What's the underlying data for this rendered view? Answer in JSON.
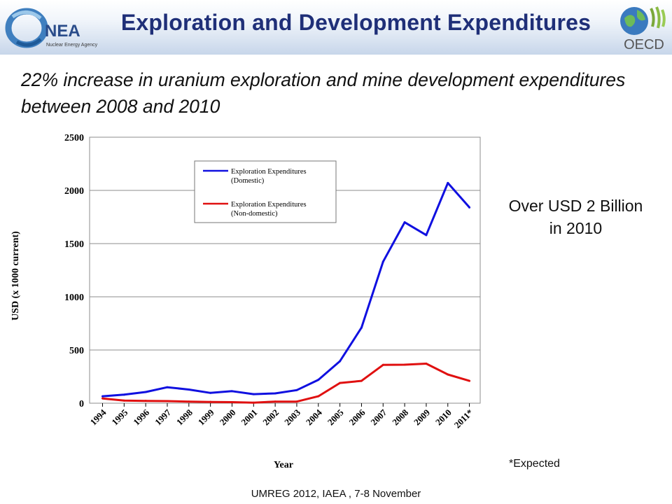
{
  "slide": {
    "title": "Exploration and Development Expenditures",
    "subtitle": "22% increase in uranium exploration and mine development expenditures between 2008 and 2010",
    "annotation_line1": "Over USD 2 Billion",
    "annotation_line2": "in 2010",
    "footnote": "*Expected",
    "footer": "UMREG 2012, IAEA , 7-8 November"
  },
  "logos": {
    "nea_text": "NEA",
    "nea_subtext": "Nuclear Energy Agency",
    "oecd_text": "OECD"
  },
  "colors": {
    "title": "#1f2f78",
    "domestic": "#1010e0",
    "non_domestic": "#e01010",
    "grid": "#8c8c8c"
  },
  "chart_data": {
    "type": "line",
    "xlabel": "Year",
    "ylabel": "USD (x 1000 current)",
    "ylim": [
      0,
      2500
    ],
    "yticks": [
      0,
      500,
      1000,
      1500,
      2000,
      2500
    ],
    "grid": true,
    "legend_position": "top-left",
    "categories": [
      "1994",
      "1995",
      "1996",
      "1997",
      "1998",
      "1999",
      "2000",
      "2001",
      "2002",
      "2003",
      "2004",
      "2005",
      "2006",
      "2007",
      "2008",
      "2009",
      "2010",
      "2011*"
    ],
    "series": [
      {
        "name": "Exploration Expenditures (Domestic)",
        "legend_line1": "Exploration Expenditures",
        "legend_line2": "(Domestic)",
        "color": "#1010e0",
        "values": [
          65,
          80,
          105,
          150,
          128,
          97,
          113,
          85,
          92,
          123,
          220,
          395,
          710,
          1330,
          1700,
          1580,
          2070,
          1840
        ]
      },
      {
        "name": "Exploration Expenditures (Non-domestic)",
        "legend_line1": "Exploration Expenditures",
        "legend_line2": "(Non-domestic)",
        "color": "#e01010",
        "values": [
          45,
          25,
          22,
          20,
          15,
          12,
          10,
          5,
          15,
          15,
          65,
          190,
          210,
          360,
          362,
          372,
          270,
          210
        ]
      }
    ]
  }
}
